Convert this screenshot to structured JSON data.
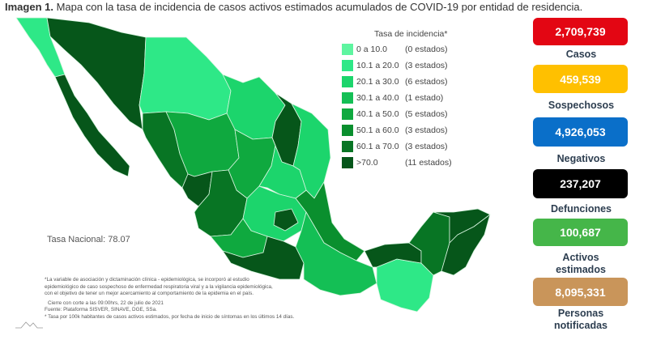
{
  "title": {
    "prefix": "Imagen 1.",
    "text": "Mapa con la tasa de incidencia de casos activos estimados acumulados de COVID-19 por entidad de residencia."
  },
  "map": {
    "national_rate": "Tasa Nacional: 78.07",
    "legend": {
      "title": "Tasa de incidencia*",
      "items": [
        {
          "range": "0   a  10.0",
          "count": "(0 estados)",
          "color": "#5ef5a0"
        },
        {
          "range": "10.1 a  20.0",
          "count": "(3 estados)",
          "color": "#2ee887"
        },
        {
          "range": "20.1 a  30.0",
          "count": "(6 estados)",
          "color": "#1cd56c"
        },
        {
          "range": "30.1 a  40.0",
          "count": "(1 estado)",
          "color": "#14bf55"
        },
        {
          "range": "40.1 a  50.0",
          "count": "(5 estados)",
          "color": "#0fa93f"
        },
        {
          "range": "50.1 a  60.0",
          "count": "(3 estados)",
          "color": "#0a8f2e"
        },
        {
          "range": "60.1 a  70.0",
          "count": "(3 estados)",
          "color": "#087524"
        },
        {
          "range": ">70.0",
          "count": "(11 estados)",
          "color": "#06561a"
        }
      ]
    }
  },
  "notes": [
    "*La variable de asociación y dictaminación clínica - epidemiológica, se incorporó al estudio",
    "epidemiológico de caso sospechoso de enfermedad respiratoria viral y a la vigilancia epidemiológica,",
    "con el objetivo de tener un mejor acercamiento al comportamiento de la epidemia en el país.",
    "Cierre con corte a las 09:00hrs, 22 de julio de 2021",
    "Fuente: Plataforma SISVER, SINAVE, DGE, SSa.",
    "* Tasa por 100k habitantes de casos activos estimados, por fecha de inicio de síntomas en los últimos 14 días."
  ],
  "stats": [
    {
      "value": "2,709,739",
      "label": "Casos",
      "color": "#e30613"
    },
    {
      "value": "459,539",
      "label": "Sospechosos",
      "color": "#ffc000"
    },
    {
      "value": "4,926,053",
      "label": "Negativos",
      "color": "#0a6fc9"
    },
    {
      "value": "237,207",
      "label": "Defunciones",
      "color": "#000000"
    },
    {
      "value": "100,687",
      "label": "Activos estimados",
      "color": "#45b649"
    },
    {
      "value": "8,095,331",
      "label": "Personas notificadas",
      "color": "#c9955a"
    }
  ]
}
